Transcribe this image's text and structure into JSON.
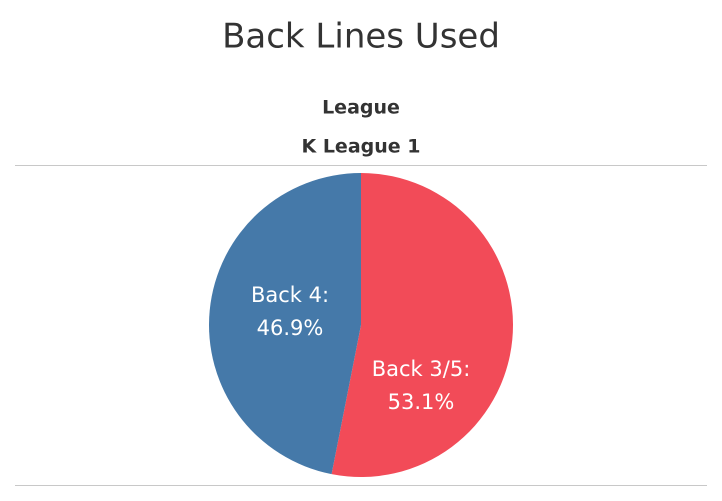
{
  "chart_data": {
    "type": "pie",
    "title": "Back Lines Used",
    "header_title": "League",
    "header_value": "K League 1",
    "categories": [
      "Back 3/5:",
      "Back 4:"
    ],
    "values": [
      53.1,
      46.9
    ],
    "value_labels": [
      "53.1%",
      "46.9%"
    ],
    "colors": [
      "#f24b58",
      "#4579a9"
    ]
  }
}
